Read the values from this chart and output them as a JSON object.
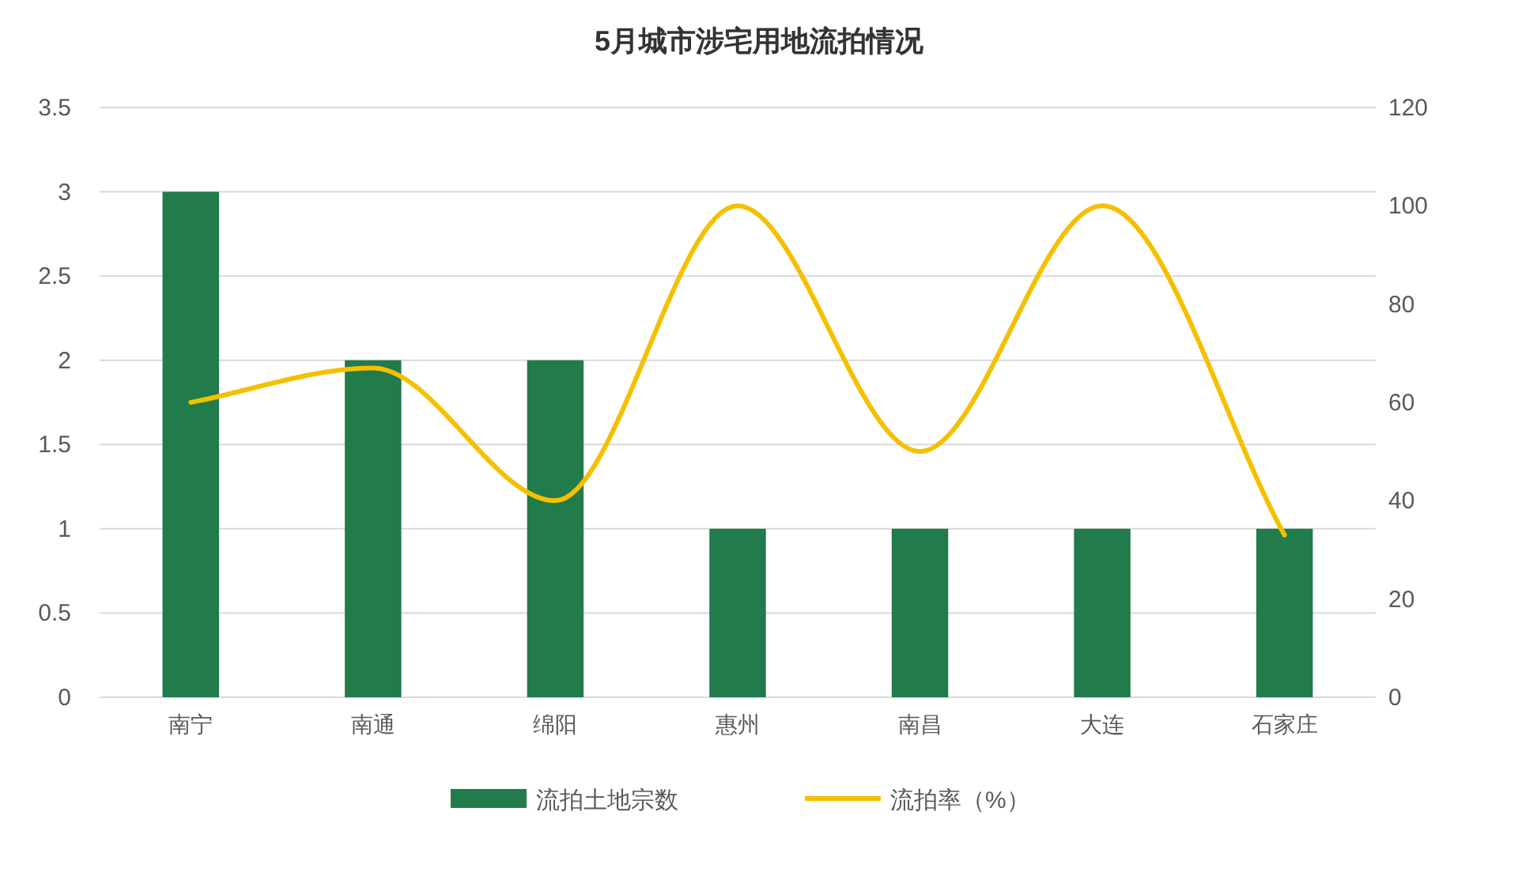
{
  "chart_data": {
    "type": "bar",
    "title": "5月城市涉宅用地流拍情况",
    "categories": [
      "南宁",
      "南通",
      "绵阳",
      "惠州",
      "南昌",
      "大连",
      "石家庄"
    ],
    "series": [
      {
        "name": "流拍土地宗数",
        "color": "#217b4b",
        "values": [
          3,
          2,
          2,
          1,
          1,
          1,
          1
        ]
      },
      {
        "name": "流拍率（%）",
        "type": "line",
        "axis": "y2",
        "color": "#f5c000",
        "values": [
          60,
          67,
          40,
          100,
          50,
          100,
          33
        ]
      }
    ],
    "ylim": [
      0,
      3.5
    ],
    "yticks": [
      0,
      0.5,
      1,
      1.5,
      2,
      2.5,
      3,
      3.5
    ],
    "y2lim": [
      0,
      120
    ],
    "y2ticks": [
      0,
      20,
      40,
      60,
      80,
      100,
      120
    ],
    "grid": "y",
    "legend": "bottom"
  }
}
